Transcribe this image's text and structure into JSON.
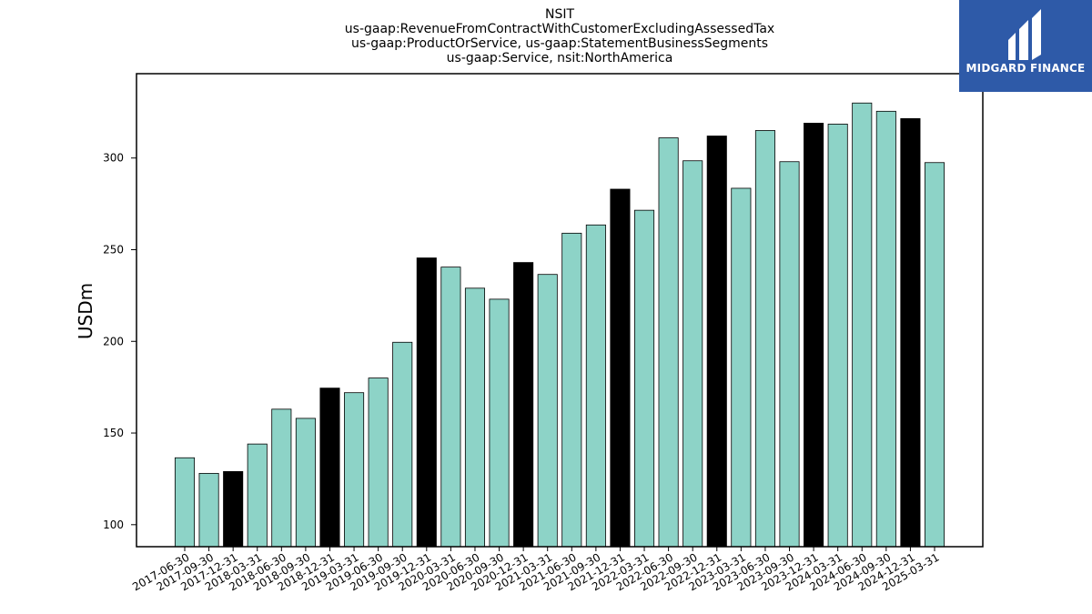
{
  "chart_data": {
    "type": "bar",
    "title_lines": [
      "NSIT",
      "us-gaap:RevenueFromContractWithCustomerExcludingAssessedTax",
      "us-gaap:ProductOrService, us-gaap:StatementBusinessSegments",
      "us-gaap:Service, nsit:NorthAmerica"
    ],
    "ylabel": "USDm",
    "ylim": [
      88,
      346
    ],
    "yticks": [
      100,
      150,
      200,
      250,
      300
    ],
    "categories": [
      "2017-06-30",
      "2017-09-30",
      "2017-12-31",
      "2018-03-31",
      "2018-06-30",
      "2018-09-30",
      "2018-12-31",
      "2019-03-31",
      "2019-06-30",
      "2019-09-30",
      "2019-12-31",
      "2020-03-31",
      "2020-06-30",
      "2020-09-30",
      "2020-12-31",
      "2021-03-31",
      "2021-06-30",
      "2021-09-30",
      "2021-12-31",
      "2022-03-31",
      "2022-06-30",
      "2022-09-30",
      "2022-12-31",
      "2023-03-31",
      "2023-06-30",
      "2023-09-30",
      "2023-12-31",
      "2024-03-31",
      "2024-06-30",
      "2024-09-30",
      "2024-12-31",
      "2025-03-31"
    ],
    "values": [
      136.5,
      128,
      129,
      144,
      163,
      158,
      174.5,
      172,
      180,
      199.5,
      245.5,
      240.5,
      229,
      223,
      243,
      236.5,
      259,
      263.5,
      283,
      271.5,
      311,
      298.5,
      312,
      283.5,
      315,
      298,
      319,
      318.5,
      330,
      325.5,
      321.5,
      297.5
    ],
    "highlight_months": [
      "12"
    ],
    "colors": {
      "normal": "#8dd3c7",
      "highlight": "#000000",
      "edge": "#000000"
    }
  },
  "logo": {
    "text": "MIDGARD FINANCE",
    "background": "#2e5aa8"
  }
}
